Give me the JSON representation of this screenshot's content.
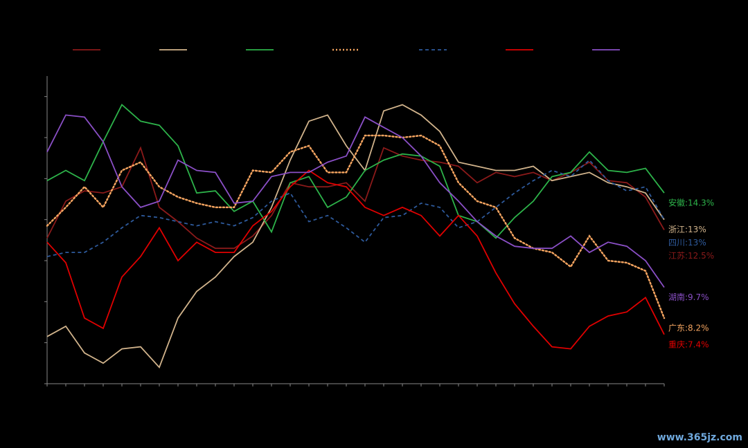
{
  "chart_data": {
    "type": "line",
    "categories": [
      null,
      null,
      null,
      null,
      null,
      null,
      null,
      null,
      null,
      null,
      null,
      null,
      null,
      null,
      null,
      null,
      null,
      null,
      null,
      null,
      null,
      null,
      null,
      null,
      null,
      null,
      null,
      null,
      null,
      null,
      null,
      null,
      null,
      null
    ],
    "ylim": [
      5,
      20
    ],
    "yticks": [
      5,
      7,
      9,
      11,
      13,
      15,
      17,
      19
    ],
    "background": "#000000",
    "watermark": "www.365jz.com",
    "series": [
      {
        "color": "#8b1a1a",
        "dash": "solid",
        "end_label": "江苏:12.5%",
        "values": [
          12.1,
          13.9,
          14.4,
          14.3,
          14.6,
          16.5,
          13.6,
          12.9,
          12.1,
          11.6,
          11.6,
          12.2,
          13.2,
          14.8,
          14.6,
          14.6,
          14.8,
          13.9,
          16.5,
          16.1,
          15.9,
          15.8,
          15.6,
          14.8,
          15.3,
          15.1,
          15.3,
          14.9,
          15.3,
          15.8,
          14.9,
          14.8,
          14.1,
          12.5
        ]
      },
      {
        "color": "#d2b48c",
        "dash": "solid",
        "end_label": "浙江:13%",
        "values": [
          7.3,
          7.8,
          6.5,
          6.0,
          6.7,
          6.8,
          5.8,
          8.2,
          9.5,
          10.2,
          11.2,
          11.9,
          13.6,
          15.9,
          17.8,
          18.1,
          16.6,
          15.4,
          18.3,
          18.6,
          18.1,
          17.3,
          15.8,
          15.6,
          15.4,
          15.4,
          15.6,
          14.9,
          15.1,
          15.3,
          14.8,
          14.6,
          14.3,
          13
        ]
      },
      {
        "color": "#2db34a",
        "dash": "solid",
        "end_label": "安徽:14.3%",
        "values": [
          14.9,
          15.4,
          14.9,
          16.8,
          18.6,
          17.8,
          17.6,
          16.6,
          14.3,
          14.4,
          13.4,
          13.9,
          12.4,
          14.8,
          15.1,
          13.6,
          14.1,
          15.4,
          15.9,
          16.2,
          16.1,
          15.6,
          13.2,
          12.9,
          12.1,
          13.1,
          13.9,
          15.1,
          15.3,
          16.3,
          15.4,
          15.3,
          15.5,
          14.3
        ]
      },
      {
        "color": "#f4a460",
        "dash": "dotted",
        "end_label": "广东:8.2%",
        "values": [
          12.7,
          13.6,
          14.6,
          13.6,
          15.4,
          15.8,
          14.6,
          14.1,
          13.8,
          13.6,
          13.6,
          15.4,
          15.3,
          16.3,
          16.6,
          15.3,
          15.3,
          17.1,
          17.1,
          17.0,
          17.1,
          16.6,
          14.8,
          13.9,
          13.6,
          12.1,
          11.6,
          11.4,
          10.7,
          12.2,
          11.0,
          10.9,
          10.5,
          8.2
        ]
      },
      {
        "color": "#2e5a9c",
        "dash": "dashed",
        "end_label": "四川:13%",
        "values": [
          11.2,
          11.4,
          11.4,
          11.9,
          12.6,
          13.2,
          13.1,
          12.9,
          12.7,
          12.9,
          12.7,
          13.1,
          13.9,
          14.3,
          12.9,
          13.2,
          12.6,
          11.9,
          13.1,
          13.2,
          13.8,
          13.6,
          12.6,
          12.9,
          13.6,
          14.3,
          14.9,
          15.4,
          15.1,
          15.9,
          14.9,
          14.4,
          14.6,
          13
        ]
      },
      {
        "color": "#e00000",
        "dash": "solid",
        "end_label": "重庆:7.4%",
        "values": [
          11.9,
          10.9,
          8.2,
          7.7,
          10.2,
          11.2,
          12.6,
          11.0,
          11.9,
          11.4,
          11.4,
          12.7,
          13.4,
          14.6,
          15.4,
          14.8,
          14.6,
          13.6,
          13.2,
          13.6,
          13.2,
          12.2,
          13.2,
          12.2,
          10.4,
          8.9,
          7.8,
          6.8,
          6.7,
          7.8,
          8.3,
          8.5,
          9.2,
          7.4
        ]
      },
      {
        "color": "#8a4fc6",
        "dash": "solid",
        "end_label": "湖南:9.7%",
        "values": [
          16.3,
          18.1,
          18.0,
          16.8,
          14.6,
          13.6,
          13.9,
          15.9,
          15.4,
          15.3,
          13.8,
          13.9,
          15.1,
          15.3,
          15.3,
          15.8,
          16.1,
          18.0,
          17.5,
          17.0,
          16.1,
          14.8,
          13.9,
          12.9,
          12.2,
          11.7,
          11.6,
          11.6,
          12.2,
          11.4,
          11.9,
          11.7,
          11.0,
          9.7
        ]
      }
    ]
  }
}
